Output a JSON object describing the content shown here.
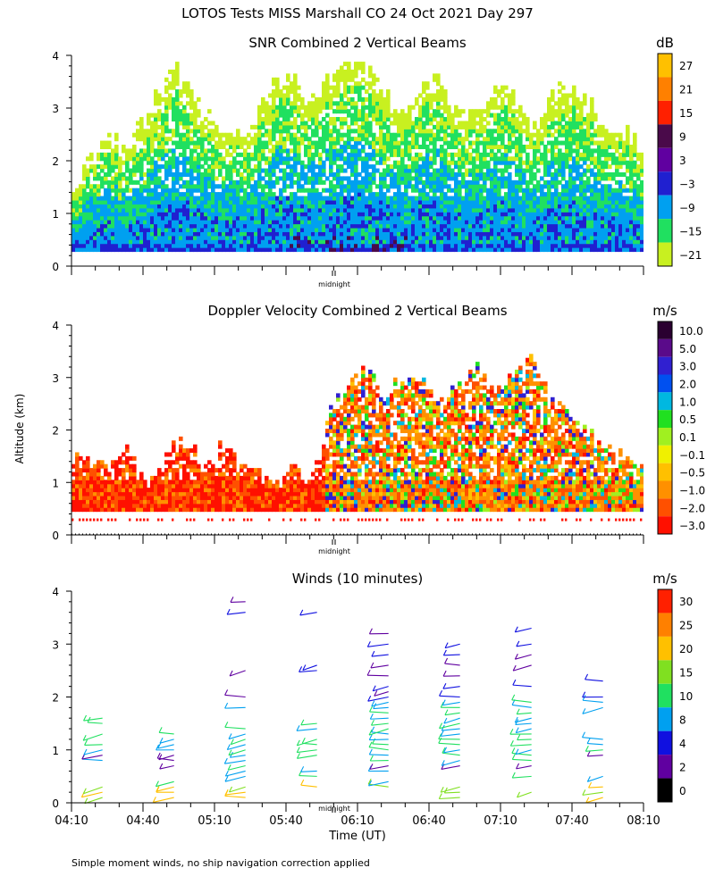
{
  "page": {
    "title": "LOTOS Tests MISS Marshall CO  24 Oct 2021 Day 297",
    "footnote": "Simple moment winds, no ship navigation correction applied",
    "ylabel": "Altitude (km)",
    "xlabel": "Time (UT)",
    "midnight_label": "midnight"
  },
  "chart_data": [
    {
      "type": "heatmap",
      "title": "SNR Combined 2 Vertical Beams",
      "ylim": [
        0,
        4
      ],
      "yticks": [
        "0",
        "1",
        "2",
        "3",
        "4"
      ],
      "colorbar": {
        "unit": "dB",
        "labels": [
          "27",
          "21",
          "15",
          "9",
          "3",
          "−3",
          "−9",
          "−15",
          "−21"
        ],
        "colors": [
          "#ffc000",
          "#ff8000",
          "#ff2000",
          "#4a0a4a",
          "#6000a0",
          "#2020d0",
          "#00a0f0",
          "#20e060",
          "#c8f020"
        ]
      },
      "top_envelope_km": [
        1.4,
        2.0,
        2.4,
        2.2,
        2.6,
        3.3,
        3.7,
        3.2,
        2.8,
        2.5,
        2.6,
        3.0,
        3.6,
        3.4,
        3.1,
        3.6,
        3.9,
        3.7,
        3.2,
        3.0,
        3.3,
        3.5,
        3.0,
        2.8,
        3.1,
        3.4,
        2.9,
        2.6,
        3.3,
        3.4,
        3.0,
        2.7,
        2.5,
        2.2
      ]
    },
    {
      "type": "heatmap",
      "title": "Doppler Velocity Combined 2 Vertical Beams",
      "ylim": [
        0,
        4
      ],
      "yticks": [
        "0",
        "1",
        "2",
        "3",
        "4"
      ],
      "colorbar": {
        "unit": "m/s",
        "labels": [
          "10.0",
          "5.0",
          "3.0",
          "2.0",
          "1.0",
          "0.5",
          "0.1",
          "−0.1",
          "−0.5",
          "−1.0",
          "−2.0",
          "−3.0"
        ],
        "colors": [
          "#2a0030",
          "#5a0a8a",
          "#3020d0",
          "#0050f0",
          "#00b8e0",
          "#20e020",
          "#a0f020",
          "#f0f000",
          "#ffc000",
          "#ff9000",
          "#ff5000",
          "#ff1000"
        ]
      },
      "top_envelope_km": [
        1.6,
        1.4,
        1.2,
        1.6,
        1.0,
        1.5,
        1.8,
        1.4,
        1.7,
        1.3,
        1.1,
        0.9,
        1.3,
        1.0,
        2.4,
        2.8,
        3.1,
        2.6,
        2.9,
        3.0,
        2.5,
        2.8,
        3.1,
        2.7,
        2.9,
        3.3,
        2.6,
        2.2,
        2.0,
        1.7,
        1.5,
        1.2
      ]
    },
    {
      "type": "scatter",
      "title": "Winds (10 minutes)",
      "ylim": [
        0,
        4
      ],
      "yticks": [
        "0",
        "1",
        "2",
        "3",
        "4"
      ],
      "xticks": [
        "04:10",
        "04:40",
        "05:10",
        "05:40",
        "06:10",
        "06:40",
        "07:10",
        "07:40",
        "08:10"
      ],
      "colorbar": {
        "unit": "m/s",
        "labels": [
          "30",
          "25",
          "20",
          "15",
          "10",
          "8",
          "4",
          "2",
          "0"
        ],
        "colors": [
          "#ff2000",
          "#ff8000",
          "#ffc000",
          "#80e020",
          "#20e060",
          "#00a0f0",
          "#1010e0",
          "#6000a0",
          "#000000"
        ]
      },
      "profiles": [
        {
          "time": "04:23",
          "heights": [
            0.1,
            0.2,
            0.3,
            0.8,
            0.9,
            1.0,
            1.1,
            1.3,
            1.5,
            1.6
          ]
        },
        {
          "time": "04:53",
          "heights": [
            0.1,
            0.2,
            0.3,
            0.4,
            0.7,
            0.8,
            0.9,
            1.0,
            1.1,
            1.2,
            1.3
          ]
        },
        {
          "time": "05:23",
          "heights": [
            0.1,
            0.2,
            0.3,
            0.5,
            0.6,
            0.7,
            0.8,
            0.9,
            1.0,
            1.1,
            1.2,
            1.3,
            1.4,
            1.8,
            2.0,
            2.5,
            3.6,
            3.8
          ]
        },
        {
          "time": "05:53",
          "heights": [
            0.3,
            0.5,
            0.6,
            0.9,
            1.0,
            1.1,
            1.2,
            1.4,
            1.5,
            2.5,
            2.6,
            3.6
          ]
        },
        {
          "time": "06:23",
          "heights": [
            0.3,
            0.4,
            0.6,
            0.7,
            0.8,
            0.9,
            1.0,
            1.1,
            1.2,
            1.3,
            1.4,
            1.5,
            1.6,
            1.7,
            1.8,
            1.9,
            2.0,
            2.1,
            2.2,
            2.4,
            2.6,
            2.8,
            3.0,
            3.2
          ]
        },
        {
          "time": "06:53",
          "heights": [
            0.1,
            0.2,
            0.3,
            0.7,
            0.8,
            0.9,
            1.0,
            1.1,
            1.2,
            1.3,
            1.4,
            1.5,
            1.6,
            1.7,
            1.8,
            1.9,
            2.0,
            2.2,
            2.4,
            2.6,
            2.8,
            3.0
          ]
        },
        {
          "time": "07:23",
          "heights": [
            0.2,
            0.5,
            0.7,
            0.8,
            0.9,
            1.0,
            1.1,
            1.2,
            1.3,
            1.4,
            1.5,
            1.6,
            1.7,
            1.8,
            1.9,
            2.2,
            2.6,
            2.8,
            3.0,
            3.3
          ]
        },
        {
          "time": "07:53",
          "heights": [
            0.1,
            0.2,
            0.3,
            0.5,
            0.9,
            1.0,
            1.1,
            1.2,
            1.8,
            1.9,
            2.0,
            2.3
          ]
        }
      ]
    }
  ]
}
